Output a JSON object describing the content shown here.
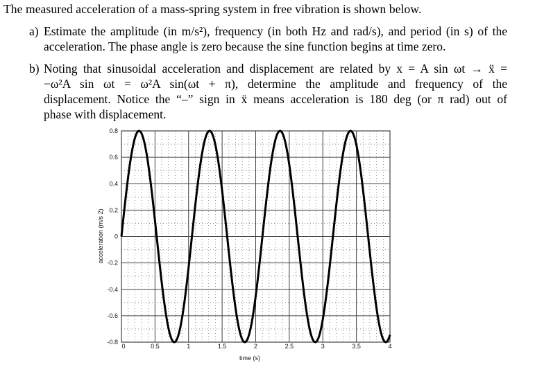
{
  "problem": {
    "intro": "The measured acceleration of a mass-spring system in free vibration is shown below.",
    "parts": [
      {
        "label": "a)",
        "lines": [
          "Estimate the amplitude (in m/s²), frequency (in both Hz and rad/s), and period (in s) of the",
          "acceleration. The phase angle is zero because the sine function begins at time zero."
        ]
      },
      {
        "label": "b)",
        "lines": [
          "Noting that sinusoidal acceleration and displacement are related by x = A sin ωt → ẍ =",
          "−ω²A sin ωt = ω²A sin(ωt + π),  determine  the  amplitude  and  frequency  of  the",
          "displacement. Notice the “–” sign in ẍ means acceleration is 180 deg (or π rad) out of",
          "phase with displacement."
        ]
      }
    ]
  },
  "chart_data": {
    "type": "line",
    "title": "",
    "xlabel": "time (s)",
    "ylabel": "acceleration (m/s 2)",
    "xlim": [
      0,
      4
    ],
    "ylim": [
      -0.8,
      0.8
    ],
    "xticks": [
      "0",
      "0.5",
      "1",
      "1.5",
      "2",
      "2.5",
      "3",
      "3.5",
      "4"
    ],
    "yticks": [
      "0.8",
      "0.6",
      "0.4",
      "0.2",
      "0",
      "-0.2",
      "-0.4",
      "-0.6",
      "-0.8"
    ],
    "grid": {
      "major": true,
      "minor_dotted": true
    },
    "legend": null,
    "series": [
      {
        "name": "acceleration",
        "function": "0.8*sin(2*pi*t/1.05)",
        "amplitude": 0.8,
        "period_s": 1.05,
        "phase_rad": 0,
        "peaks_t": [
          0.26,
          1.31,
          2.36,
          3.41
        ],
        "troughs_t": [
          0.79,
          1.84,
          2.89,
          3.94
        ],
        "x": [
          0,
          0.26,
          0.525,
          0.79,
          1.05,
          1.31,
          1.575,
          1.84,
          2.1,
          2.36,
          2.625,
          2.89,
          3.15,
          3.41,
          3.675,
          3.94,
          4.0
        ],
        "y": [
          0,
          0.8,
          0,
          -0.8,
          0,
          0.8,
          0,
          -0.8,
          0,
          0.8,
          0,
          -0.8,
          0,
          0.8,
          0,
          -0.8,
          -0.7
        ]
      }
    ]
  }
}
